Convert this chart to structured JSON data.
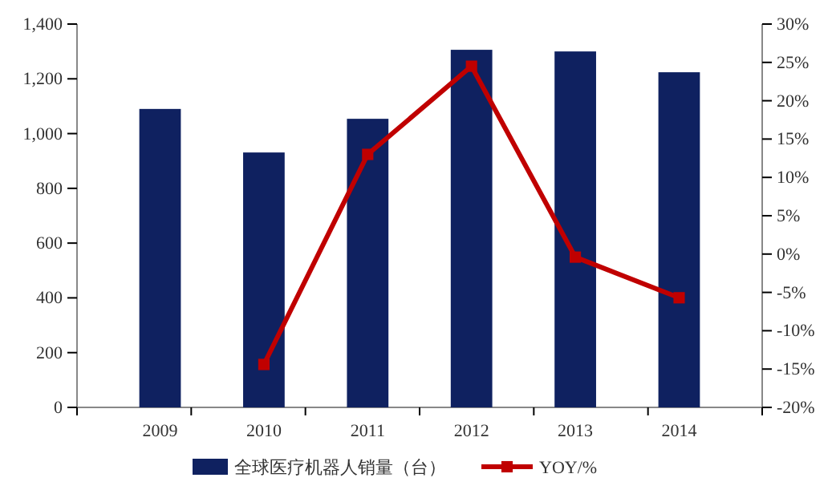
{
  "chart_data": {
    "type": "bar",
    "categories": [
      "2009",
      "2010",
      "2011",
      "2012",
      "2013",
      "2014"
    ],
    "series": [
      {
        "name": "全球医疗机器人销量（台）",
        "color": "#0f2160",
        "values": [
          1090,
          931,
          1054,
          1306,
          1300,
          1224
        ]
      },
      {
        "name": "YOY/%",
        "type": "line",
        "axis": "y2",
        "color": "#c00000",
        "values": [
          null,
          -14.4,
          13,
          24.5,
          -0.4,
          -5.7
        ]
      }
    ],
    "ylim": [
      0,
      1400
    ],
    "yticks": [
      0,
      200,
      400,
      600,
      800,
      {
        "value": 1000,
        "label": "1,000"
      },
      {
        "value": 1200,
        "label": "1,200"
      },
      {
        "value": 1400,
        "label": "1,400"
      }
    ],
    "y2lim": [
      -20,
      30
    ],
    "y2ticks": [
      {
        "value": -20,
        "label": "-20%"
      },
      {
        "value": -15,
        "label": "-15%"
      },
      {
        "value": -10,
        "label": "-10%"
      },
      {
        "value": -5,
        "label": "-5%"
      },
      {
        "value": 0,
        "label": "0%"
      },
      {
        "value": 5,
        "label": "5%"
      },
      {
        "value": 10,
        "label": "10%"
      },
      {
        "value": 15,
        "label": "15%"
      },
      {
        "value": 20,
        "label": "20%"
      },
      {
        "value": 25,
        "label": "25%"
      },
      {
        "value": 30,
        "label": "30%"
      }
    ],
    "legend": "bottom",
    "marker": "square",
    "grid": false
  }
}
